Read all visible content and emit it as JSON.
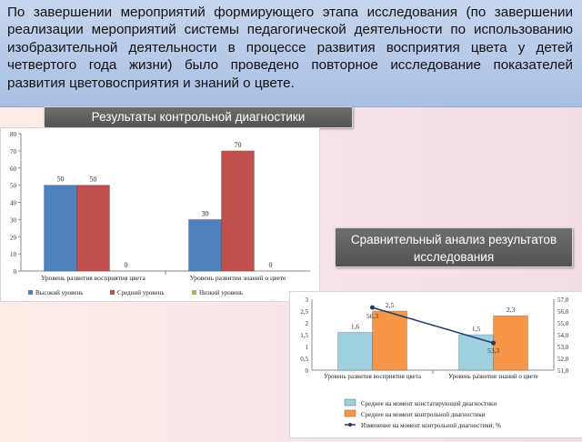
{
  "intro_text": "По завершении мероприятий формирующего этапа исследования (по завершении реализации мероприятий системы педагогической деятельности по использованию изобразительной деятельности в процессе развития восприятия цвета у детей четвертого года жизни) было проведено повторное исследование показателей развития цветовосприятия и знаний о цвете.",
  "label_control": "Результаты контрольной диагностики",
  "label_comparative": "Сравнительный анализ результатов исследования",
  "colors": {
    "blue": "#4f81bd",
    "red": "#c0504d",
    "green": "#9bbb59",
    "light_blue": "#9ed0e0",
    "orange": "#f79646",
    "navy": "#1f3864"
  },
  "chart_data": [
    {
      "type": "bar",
      "categories": [
        "Уровень развития восприятия цвета",
        "Уровень развития знаний о цвете"
      ],
      "series": [
        {
          "name": "Высокий уровень",
          "values": [
            50,
            30
          ]
        },
        {
          "name": "Средний уровень",
          "values": [
            50,
            70
          ]
        },
        {
          "name": "Низкий уровень",
          "values": [
            0,
            0
          ]
        }
      ],
      "ylim": [
        0,
        80
      ],
      "yticks": [
        0,
        10,
        20,
        30,
        40,
        50,
        60,
        70,
        80
      ],
      "grid": false,
      "legend": "bottom"
    },
    {
      "type": "bar",
      "categories": [
        "Уровень развития восприятия цвета",
        "Уровень развития знаний о цвете"
      ],
      "series": [
        {
          "name": "Среднее на момент констатирующей диагностики",
          "values": [
            1.6,
            1.5
          ]
        },
        {
          "name": "Среднее на момент контрольной диагностики",
          "values": [
            2.5,
            2.3
          ]
        }
      ],
      "line_series": {
        "name": "Изменение на момент контрольной диагностики, %",
        "values": [
          56.3,
          53.3
        ]
      },
      "ylim": [
        0,
        3
      ],
      "yticks": [
        "0",
        "0,5",
        "1",
        "1,5",
        "2",
        "2,5",
        "3"
      ],
      "y2lim": [
        51,
        57
      ],
      "y2ticks": [
        "51,0",
        "52,0",
        "53,0",
        "54,0",
        "55,0",
        "56,0",
        "57,0"
      ],
      "data_labels": {
        "bars": [
          [
            "1,6",
            "1,5"
          ],
          [
            "2,5",
            "2,3"
          ]
        ],
        "line": [
          "56,3",
          "53,3"
        ]
      },
      "legend": "bottom"
    }
  ]
}
